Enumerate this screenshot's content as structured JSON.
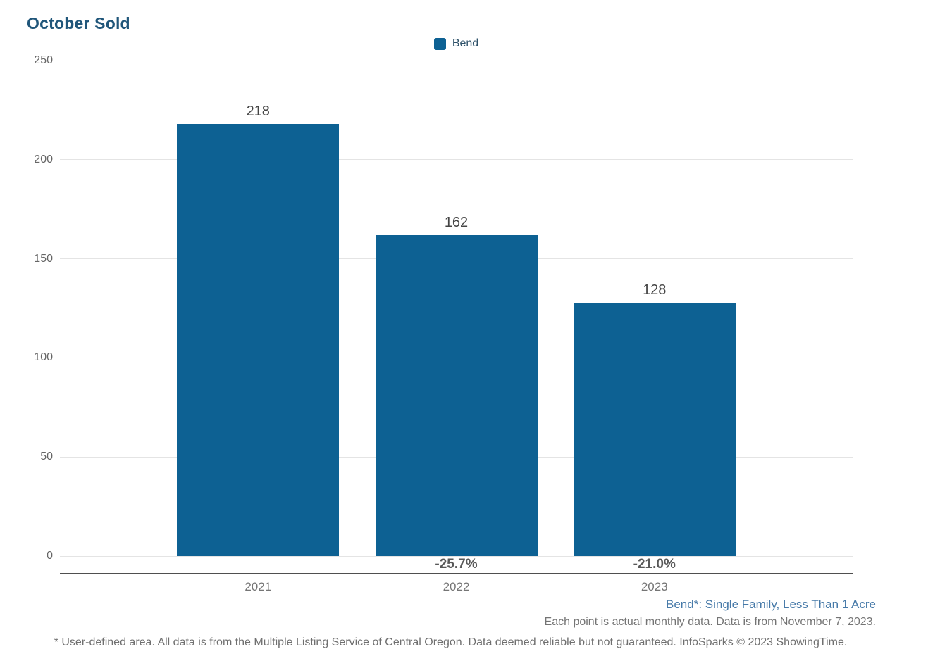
{
  "chart_data": {
    "type": "bar",
    "title": "October Sold",
    "categories": [
      "2021",
      "2022",
      "2023"
    ],
    "series": [
      {
        "name": "Bend",
        "color": "#0d6193",
        "values": [
          218,
          162,
          128
        ]
      }
    ],
    "bar_value_labels": [
      "218",
      "162",
      "128"
    ],
    "pct_change_labels": [
      "",
      "-25.7%",
      "-21.0%"
    ],
    "yticks": [
      0,
      50,
      100,
      150,
      200,
      250
    ],
    "ylim": [
      0,
      250
    ],
    "xlabel": "",
    "ylabel": "",
    "grid": true,
    "legend": [
      {
        "label": "Bend",
        "color": "#0d6193"
      }
    ],
    "legend_position": "top-center"
  },
  "footnotes": {
    "series_definition": "Bend*: Single Family, Less Than 1 Acre",
    "data_note": "Each point is actual monthly data. Data is from November 7, 2023.",
    "disclaimer": "* User-defined area. All data is from the Multiple Listing Service of Central Oregon. Data deemed reliable but not guaranteed. InfoSparks © 2023 ShowingTime."
  },
  "colors": {
    "bar": "#0d6193",
    "title": "#20567a",
    "gridline": "#e4e4e4",
    "axis_line": "#4f4f4f",
    "definition_link": "#4679a8"
  }
}
